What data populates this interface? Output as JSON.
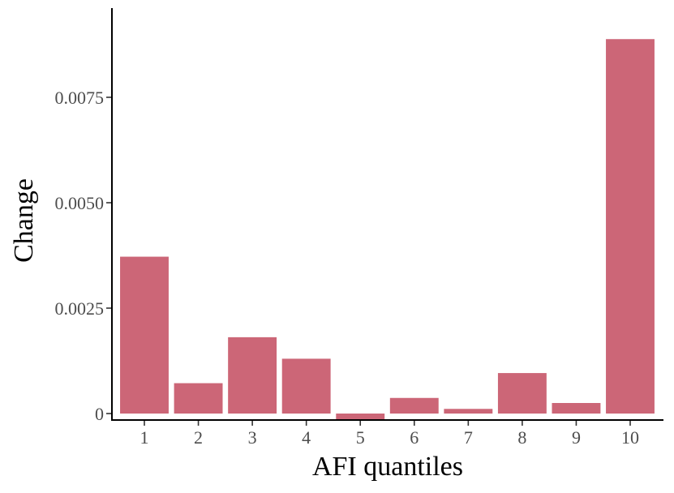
{
  "chart_data": {
    "type": "bar",
    "xlabel": "AFI quantiles",
    "ylabel": "Change",
    "categories": [
      "1",
      "2",
      "3",
      "4",
      "5",
      "6",
      "7",
      "8",
      "9",
      "10"
    ],
    "values": [
      0.00372,
      0.00072,
      0.00181,
      0.0013,
      -0.00014,
      0.00037,
      0.00011,
      0.00096,
      0.00025,
      0.00888
    ],
    "y_ticks": [
      0,
      0.0025,
      0.005,
      0.0075
    ],
    "y_tick_labels": [
      "0",
      "0.0025",
      "0.0050",
      "0.0075"
    ],
    "ylim": [
      -0.00015,
      0.0095
    ],
    "grid": false,
    "bar_color": "#cc6677"
  }
}
